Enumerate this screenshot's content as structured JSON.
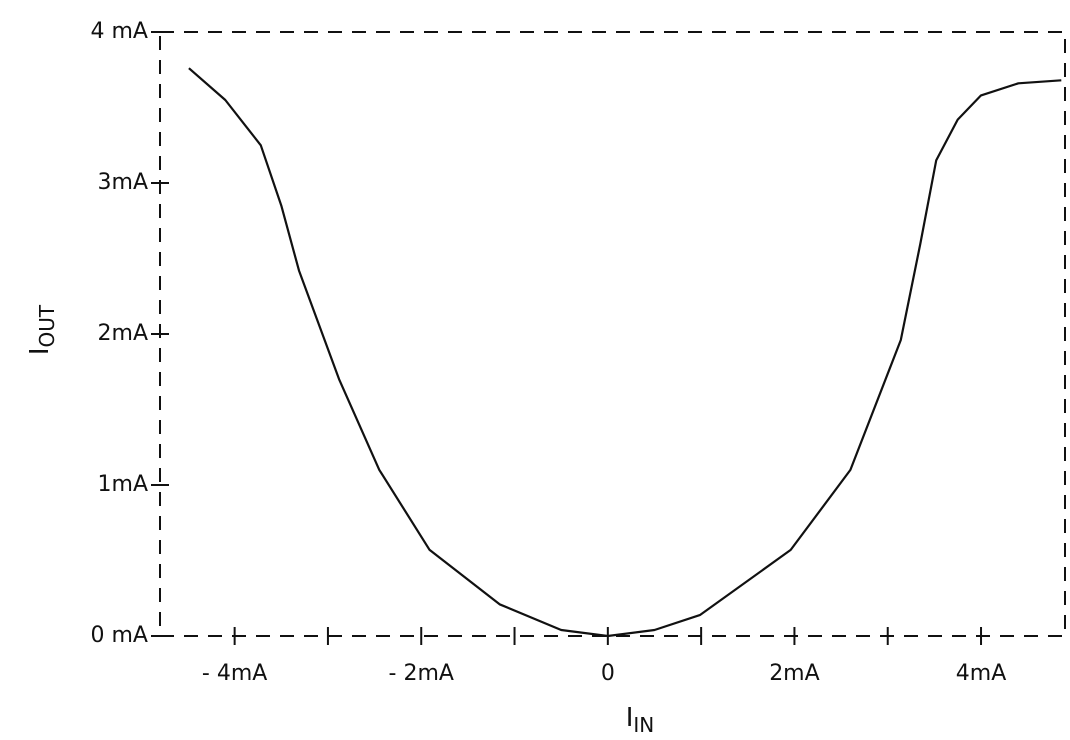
{
  "chart_data": {
    "type": "line",
    "x_label": "I",
    "x_label_sub": "IN",
    "y_label": "I",
    "y_label_sub": "OUT",
    "x": [
      -4.49,
      -4.1,
      -3.72,
      -3.5,
      -3.31,
      -2.88,
      -2.45,
      -1.91,
      -1.16,
      -0.5,
      0,
      0.5,
      0.99,
      1.96,
      2.6,
      3.14,
      3.35,
      3.52,
      3.75,
      4.0,
      4.4,
      4.86
    ],
    "values": [
      3.76,
      3.55,
      3.25,
      2.85,
      2.42,
      1.7,
      1.1,
      0.57,
      0.21,
      0.04,
      0,
      0.04,
      0.14,
      0.57,
      1.1,
      1.96,
      2.6,
      3.15,
      3.42,
      3.58,
      3.66,
      3.68
    ],
    "color": "#111111",
    "xlim": [
      -4.8,
      4.9
    ],
    "xticks": [
      {
        "value": -4,
        "label": "- 4mA"
      },
      {
        "value": -2,
        "label": "- 2mA"
      },
      0,
      {
        "value": 2,
        "label": "2mA"
      },
      {
        "value": 4,
        "label": "4mA"
      }
    ],
    "xminor_ticks": [
      -3,
      -1,
      1,
      3
    ],
    "ylim": [
      0,
      4
    ],
    "yticks": [
      {
        "value": 0,
        "label": "0 mA"
      },
      {
        "value": 1,
        "label": "1mA"
      },
      {
        "value": 2,
        "label": "2mA"
      },
      {
        "value": 3,
        "label": "3mA"
      },
      {
        "value": 4,
        "label": "4 mA"
      }
    ]
  }
}
